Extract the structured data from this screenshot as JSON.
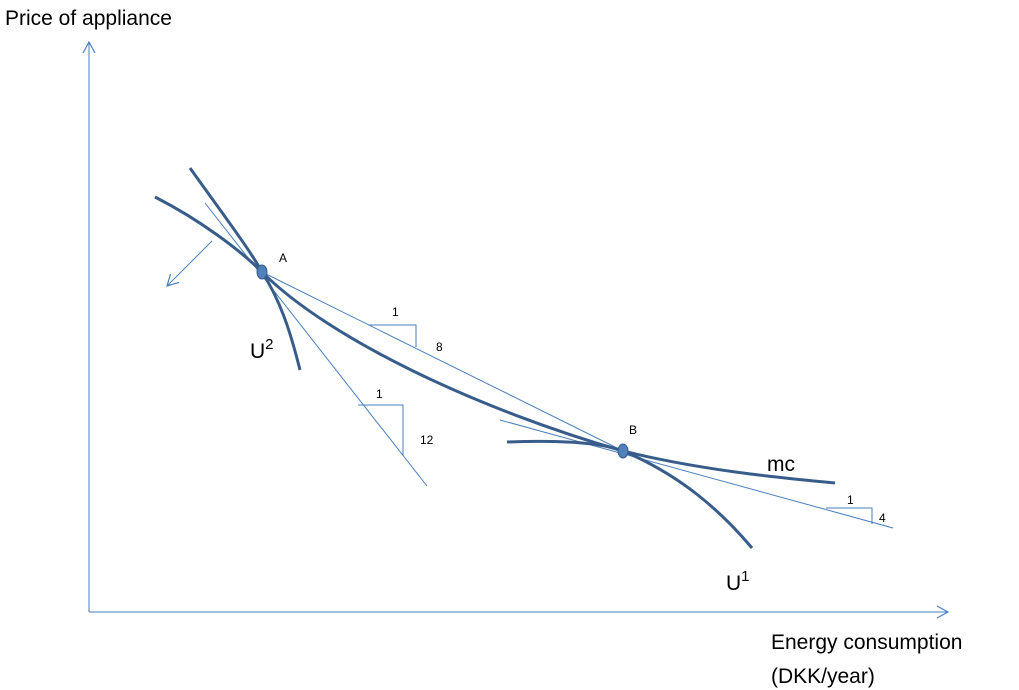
{
  "axes": {
    "y_label": "Price of appliance",
    "x_label": [
      "Energy consumption",
      "(DKK/year)"
    ]
  },
  "points": [
    "A",
    "B"
  ],
  "curves": {
    "u2": {
      "base": "U",
      "sup": "2"
    },
    "u1": {
      "base": "U",
      "sup": "1"
    },
    "mc": "mc"
  },
  "slopes": [
    {
      "run": "1",
      "rise": "8"
    },
    {
      "run": "1",
      "rise": "12"
    },
    {
      "run": "1",
      "rise": "4"
    }
  ]
}
